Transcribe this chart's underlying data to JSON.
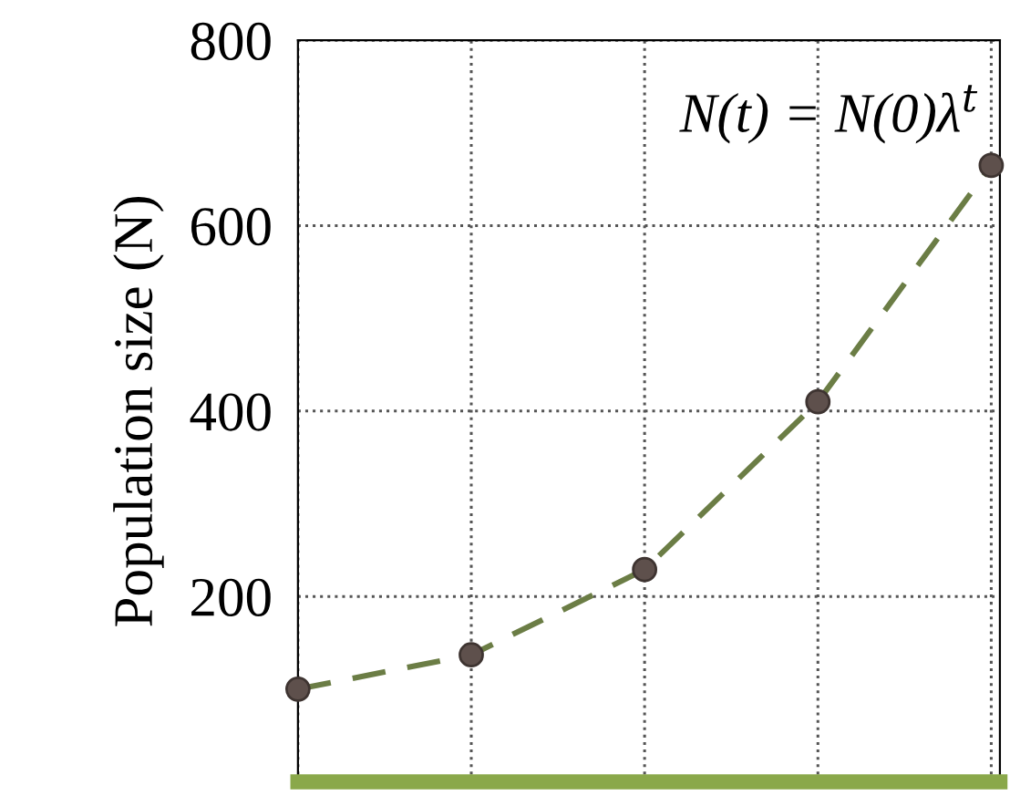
{
  "chart_data": {
    "type": "line",
    "ylabel": "Population size (N)",
    "categories": [
      null,
      null,
      null,
      null,
      null
    ],
    "series": [
      {
        "color": "#6b7d45",
        "values": [
          100,
          137,
          229,
          410,
          665
        ]
      }
    ],
    "ylim": [
      0,
      800
    ],
    "yticks": [
      {
        "value": 0,
        "label": null
      },
      200,
      400,
      600,
      800
    ],
    "grid": true,
    "marker": "circle",
    "line_style": "dashed",
    "annotations": [
      "N(t) = N(0)λ$^{t}$"
    ]
  }
}
